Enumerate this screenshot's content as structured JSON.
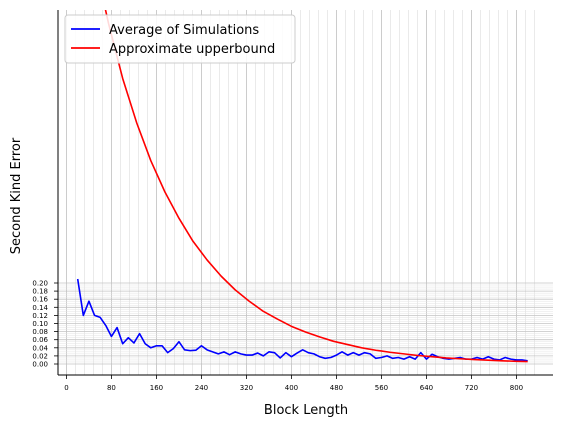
{
  "chart_data": {
    "type": "line",
    "xlabel": "Block Length",
    "ylabel": "Second Kind Error",
    "x_ticks": [
      0,
      80,
      160,
      240,
      320,
      400,
      480,
      560,
      640,
      720,
      800
    ],
    "y_ticks": [
      "0.00",
      "0.02",
      "0.04",
      "0.06",
      "0.08",
      "0.10",
      "0.12",
      "0.14",
      "0.16",
      "0.18",
      "0.20"
    ],
    "xlim": [
      -15,
      865
    ],
    "grid": true,
    "legend_position": "top-left",
    "series": [
      {
        "name": "Average of Simulations",
        "color": "#0000ff",
        "x": [
          20,
          30,
          40,
          50,
          60,
          70,
          80,
          90,
          100,
          110,
          120,
          130,
          140,
          150,
          160,
          170,
          180,
          190,
          200,
          210,
          220,
          230,
          240,
          250,
          260,
          270,
          280,
          290,
          300,
          310,
          320,
          330,
          340,
          350,
          360,
          370,
          380,
          390,
          400,
          410,
          420,
          430,
          440,
          450,
          460,
          470,
          480,
          490,
          500,
          510,
          520,
          530,
          540,
          550,
          560,
          570,
          580,
          590,
          600,
          610,
          620,
          630,
          640,
          650,
          660,
          670,
          680,
          690,
          700,
          710,
          720,
          730,
          740,
          750,
          760,
          770,
          780,
          790,
          800,
          810,
          820
        ],
        "y": [
          0.21,
          0.12,
          0.155,
          0.12,
          0.115,
          0.095,
          0.068,
          0.09,
          0.05,
          0.065,
          0.052,
          0.075,
          0.05,
          0.04,
          0.045,
          0.045,
          0.028,
          0.038,
          0.055,
          0.035,
          0.033,
          0.034,
          0.045,
          0.035,
          0.03,
          0.025,
          0.03,
          0.023,
          0.03,
          0.025,
          0.022,
          0.022,
          0.027,
          0.02,
          0.03,
          0.028,
          0.015,
          0.028,
          0.018,
          0.027,
          0.035,
          0.028,
          0.025,
          0.018,
          0.014,
          0.016,
          0.022,
          0.03,
          0.022,
          0.028,
          0.022,
          0.028,
          0.025,
          0.014,
          0.016,
          0.02,
          0.014,
          0.016,
          0.012,
          0.018,
          0.012,
          0.028,
          0.012,
          0.024,
          0.018,
          0.014,
          0.012,
          0.014,
          0.016,
          0.012,
          0.012,
          0.016,
          0.012,
          0.018,
          0.012,
          0.01,
          0.016,
          0.012,
          0.01,
          0.01,
          0.008
        ]
      },
      {
        "name": "Approximate upperbound",
        "color": "#ff0000",
        "x": [
          30,
          50,
          75,
          100,
          125,
          150,
          175,
          200,
          225,
          250,
          275,
          300,
          325,
          350,
          375,
          400,
          425,
          450,
          475,
          500,
          525,
          550,
          575,
          600,
          625,
          650,
          675,
          700,
          725,
          750,
          775,
          800,
          820
        ],
        "y": [
          1.13,
          0.995,
          0.84,
          0.705,
          0.595,
          0.502,
          0.425,
          0.36,
          0.303,
          0.257,
          0.217,
          0.183,
          0.155,
          0.13,
          0.111,
          0.093,
          0.079,
          0.067,
          0.056,
          0.048,
          0.04,
          0.034,
          0.029,
          0.025,
          0.021,
          0.018,
          0.015,
          0.013,
          0.011,
          0.0093,
          0.0079,
          0.0067,
          0.0059
        ]
      }
    ]
  }
}
